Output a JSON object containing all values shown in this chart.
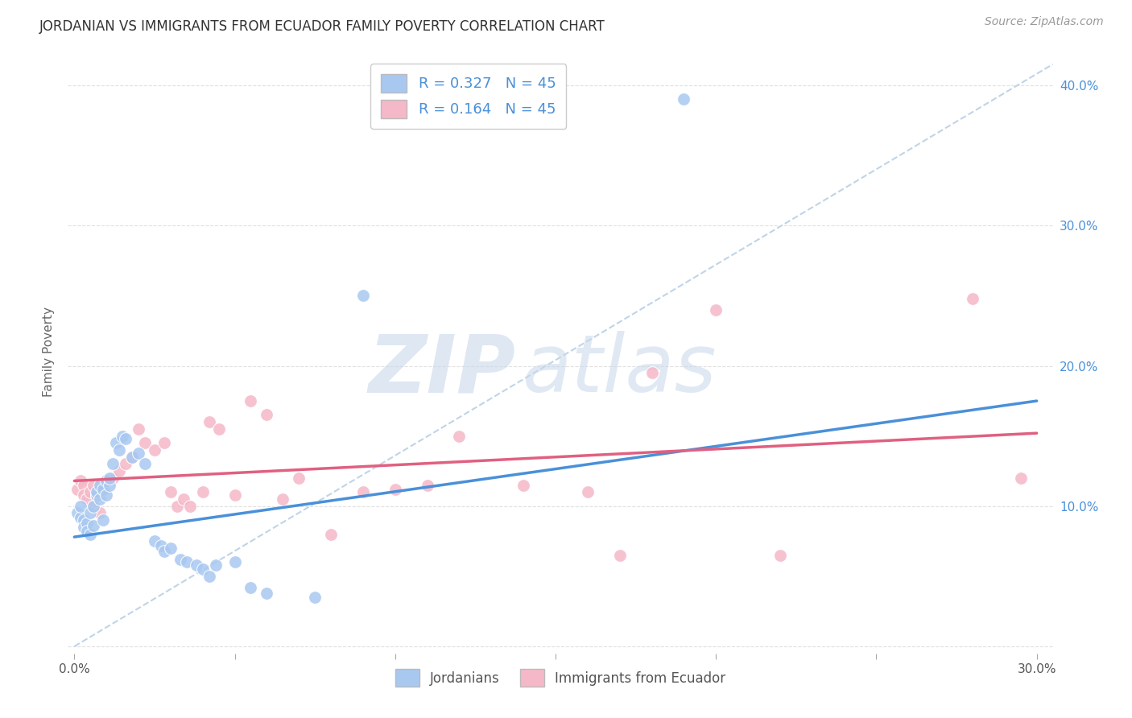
{
  "title": "JORDANIAN VS IMMIGRANTS FROM ECUADOR FAMILY POVERTY CORRELATION CHART",
  "source": "Source: ZipAtlas.com",
  "ylabel": "Family Poverty",
  "xlim": [
    -0.002,
    0.305
  ],
  "ylim": [
    -0.005,
    0.425
  ],
  "xticks": [
    0.0,
    0.05,
    0.1,
    0.15,
    0.2,
    0.25,
    0.3
  ],
  "yticks": [
    0.0,
    0.1,
    0.2,
    0.3,
    0.4
  ],
  "R_jordanian": 0.327,
  "N_jordanian": 45,
  "R_ecuador": 0.164,
  "N_ecuador": 45,
  "color_jordanian": "#a8c8f0",
  "color_ecuador": "#f5b8c8",
  "trendline_color_jordanian": "#4a90d9",
  "trendline_color_ecuador": "#e06080",
  "diagonal_color": "#c0d4e8",
  "background_color": "#ffffff",
  "grid_color": "#e0e0e0",
  "title_color": "#333333",
  "source_color": "#999999",
  "tick_label_color": "#4a90d9",
  "jordanian_x": [
    0.001,
    0.002,
    0.002,
    0.003,
    0.003,
    0.004,
    0.004,
    0.005,
    0.005,
    0.006,
    0.006,
    0.007,
    0.007,
    0.008,
    0.008,
    0.009,
    0.009,
    0.01,
    0.01,
    0.011,
    0.011,
    0.012,
    0.013,
    0.014,
    0.015,
    0.016,
    0.018,
    0.02,
    0.022,
    0.025,
    0.027,
    0.028,
    0.03,
    0.033,
    0.035,
    0.038,
    0.04,
    0.042,
    0.044,
    0.05,
    0.055,
    0.06,
    0.075,
    0.09,
    0.19
  ],
  "jordanian_y": [
    0.095,
    0.092,
    0.1,
    0.09,
    0.085,
    0.088,
    0.082,
    0.095,
    0.08,
    0.086,
    0.1,
    0.108,
    0.11,
    0.105,
    0.115,
    0.112,
    0.09,
    0.118,
    0.108,
    0.115,
    0.12,
    0.13,
    0.145,
    0.14,
    0.15,
    0.148,
    0.135,
    0.138,
    0.13,
    0.075,
    0.072,
    0.068,
    0.07,
    0.062,
    0.06,
    0.058,
    0.055,
    0.05,
    0.058,
    0.06,
    0.042,
    0.038,
    0.035,
    0.25,
    0.39
  ],
  "ecuador_x": [
    0.001,
    0.002,
    0.003,
    0.003,
    0.004,
    0.005,
    0.006,
    0.006,
    0.007,
    0.008,
    0.009,
    0.01,
    0.012,
    0.014,
    0.016,
    0.018,
    0.02,
    0.022,
    0.025,
    0.028,
    0.03,
    0.032,
    0.034,
    0.036,
    0.04,
    0.042,
    0.045,
    0.05,
    0.055,
    0.06,
    0.065,
    0.07,
    0.08,
    0.09,
    0.1,
    0.11,
    0.12,
    0.14,
    0.16,
    0.17,
    0.18,
    0.2,
    0.22,
    0.28,
    0.295
  ],
  "ecuador_y": [
    0.112,
    0.118,
    0.115,
    0.108,
    0.105,
    0.11,
    0.1,
    0.115,
    0.108,
    0.095,
    0.112,
    0.118,
    0.12,
    0.125,
    0.13,
    0.135,
    0.155,
    0.145,
    0.14,
    0.145,
    0.11,
    0.1,
    0.105,
    0.1,
    0.11,
    0.16,
    0.155,
    0.108,
    0.175,
    0.165,
    0.105,
    0.12,
    0.08,
    0.11,
    0.112,
    0.115,
    0.15,
    0.115,
    0.11,
    0.065,
    0.195,
    0.24,
    0.065,
    0.248,
    0.12
  ]
}
